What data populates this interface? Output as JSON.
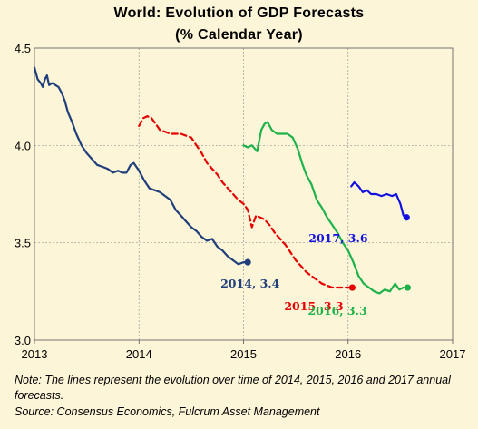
{
  "chart_data": {
    "type": "line",
    "title": "World: Evolution of GDP Forecasts",
    "subtitle": "(% Calendar Year)",
    "xlim": [
      2013,
      2017
    ],
    "ylim": [
      3.0,
      4.5
    ],
    "x_ticks": [
      "2013",
      "2014",
      "2015",
      "2016",
      "2017"
    ],
    "y_ticks": [
      "3.0",
      "3.5",
      "4.0",
      "4.5"
    ],
    "grid": true,
    "series": [
      {
        "name": "2014",
        "label": "2014, 3.4",
        "color": "#1f3f7a",
        "style": "solid",
        "points": [
          [
            2013.0,
            4.4
          ],
          [
            2013.03,
            4.34
          ],
          [
            2013.06,
            4.32
          ],
          [
            2013.08,
            4.3
          ],
          [
            2013.1,
            4.34
          ],
          [
            2013.12,
            4.36
          ],
          [
            2013.14,
            4.31
          ],
          [
            2013.17,
            4.32
          ],
          [
            2013.2,
            4.31
          ],
          [
            2013.23,
            4.3
          ],
          [
            2013.26,
            4.27
          ],
          [
            2013.29,
            4.23
          ],
          [
            2013.32,
            4.17
          ],
          [
            2013.36,
            4.12
          ],
          [
            2013.4,
            4.06
          ],
          [
            2013.45,
            4.0
          ],
          [
            2013.5,
            3.96
          ],
          [
            2013.55,
            3.93
          ],
          [
            2013.6,
            3.9
          ],
          [
            2013.65,
            3.89
          ],
          [
            2013.7,
            3.88
          ],
          [
            2013.75,
            3.86
          ],
          [
            2013.8,
            3.87
          ],
          [
            2013.84,
            3.86
          ],
          [
            2013.88,
            3.86
          ],
          [
            2013.92,
            3.9
          ],
          [
            2013.95,
            3.91
          ],
          [
            2014.0,
            3.87
          ],
          [
            2014.05,
            3.82
          ],
          [
            2014.1,
            3.78
          ],
          [
            2014.15,
            3.77
          ],
          [
            2014.2,
            3.76
          ],
          [
            2014.25,
            3.74
          ],
          [
            2014.3,
            3.72
          ],
          [
            2014.35,
            3.67
          ],
          [
            2014.4,
            3.64
          ],
          [
            2014.45,
            3.61
          ],
          [
            2014.5,
            3.58
          ],
          [
            2014.55,
            3.56
          ],
          [
            2014.6,
            3.53
          ],
          [
            2014.65,
            3.51
          ],
          [
            2014.7,
            3.52
          ],
          [
            2014.75,
            3.48
          ],
          [
            2014.8,
            3.46
          ],
          [
            2014.85,
            3.43
          ],
          [
            2014.9,
            3.41
          ],
          [
            2014.95,
            3.39
          ],
          [
            2015.0,
            3.4
          ],
          [
            2015.04,
            3.4
          ]
        ],
        "end_value": 3.4
      },
      {
        "name": "2015",
        "label": "2015, 3.3",
        "color": "#e60000",
        "style": "dashed",
        "points": [
          [
            2014.0,
            4.1
          ],
          [
            2014.04,
            4.14
          ],
          [
            2014.08,
            4.15
          ],
          [
            2014.12,
            4.14
          ],
          [
            2014.16,
            4.11
          ],
          [
            2014.2,
            4.08
          ],
          [
            2014.25,
            4.07
          ],
          [
            2014.3,
            4.06
          ],
          [
            2014.35,
            4.06
          ],
          [
            2014.4,
            4.06
          ],
          [
            2014.45,
            4.05
          ],
          [
            2014.5,
            4.04
          ],
          [
            2014.55,
            4.0
          ],
          [
            2014.6,
            3.96
          ],
          [
            2014.65,
            3.91
          ],
          [
            2014.7,
            3.88
          ],
          [
            2014.75,
            3.85
          ],
          [
            2014.8,
            3.81
          ],
          [
            2014.85,
            3.78
          ],
          [
            2014.9,
            3.75
          ],
          [
            2014.95,
            3.72
          ],
          [
            2015.0,
            3.7
          ],
          [
            2015.04,
            3.67
          ],
          [
            2015.08,
            3.58
          ],
          [
            2015.12,
            3.64
          ],
          [
            2015.16,
            3.63
          ],
          [
            2015.2,
            3.62
          ],
          [
            2015.25,
            3.59
          ],
          [
            2015.3,
            3.55
          ],
          [
            2015.35,
            3.52
          ],
          [
            2015.4,
            3.49
          ],
          [
            2015.45,
            3.45
          ],
          [
            2015.5,
            3.41
          ],
          [
            2015.55,
            3.38
          ],
          [
            2015.6,
            3.35
          ],
          [
            2015.65,
            3.33
          ],
          [
            2015.7,
            3.31
          ],
          [
            2015.75,
            3.29
          ],
          [
            2015.8,
            3.28
          ],
          [
            2015.85,
            3.27
          ],
          [
            2015.9,
            3.27
          ],
          [
            2015.95,
            3.27
          ],
          [
            2016.0,
            3.27
          ],
          [
            2016.04,
            3.27
          ]
        ],
        "end_value": 3.3
      },
      {
        "name": "2016",
        "label": "2016, 3.3",
        "color": "#1db34a",
        "style": "solid",
        "points": [
          [
            2015.0,
            4.0
          ],
          [
            2015.04,
            3.99
          ],
          [
            2015.08,
            4.0
          ],
          [
            2015.13,
            3.97
          ],
          [
            2015.17,
            4.08
          ],
          [
            2015.2,
            4.11
          ],
          [
            2015.23,
            4.12
          ],
          [
            2015.27,
            4.08
          ],
          [
            2015.32,
            4.06
          ],
          [
            2015.37,
            4.06
          ],
          [
            2015.42,
            4.06
          ],
          [
            2015.47,
            4.04
          ],
          [
            2015.52,
            3.98
          ],
          [
            2015.56,
            3.91
          ],
          [
            2015.6,
            3.85
          ],
          [
            2015.65,
            3.8
          ],
          [
            2015.7,
            3.72
          ],
          [
            2015.75,
            3.68
          ],
          [
            2015.8,
            3.63
          ],
          [
            2015.85,
            3.59
          ],
          [
            2015.9,
            3.55
          ],
          [
            2015.95,
            3.5
          ],
          [
            2016.0,
            3.46
          ],
          [
            2016.05,
            3.4
          ],
          [
            2016.1,
            3.33
          ],
          [
            2016.15,
            3.29
          ],
          [
            2016.2,
            3.27
          ],
          [
            2016.25,
            3.25
          ],
          [
            2016.3,
            3.24
          ],
          [
            2016.35,
            3.26
          ],
          [
            2016.4,
            3.25
          ],
          [
            2016.45,
            3.29
          ],
          [
            2016.49,
            3.26
          ],
          [
            2016.53,
            3.27
          ],
          [
            2016.57,
            3.27
          ]
        ],
        "end_value": 3.3
      },
      {
        "name": "2017",
        "label": "2017, 3.6",
        "color": "#1111e0",
        "style": "solid",
        "points": [
          [
            2016.03,
            3.79
          ],
          [
            2016.06,
            3.81
          ],
          [
            2016.1,
            3.79
          ],
          [
            2016.14,
            3.76
          ],
          [
            2016.18,
            3.77
          ],
          [
            2016.22,
            3.75
          ],
          [
            2016.27,
            3.75
          ],
          [
            2016.32,
            3.74
          ],
          [
            2016.37,
            3.75
          ],
          [
            2016.42,
            3.74
          ],
          [
            2016.46,
            3.75
          ],
          [
            2016.5,
            3.7
          ],
          [
            2016.53,
            3.64
          ],
          [
            2016.56,
            3.63
          ]
        ],
        "end_value": 3.6
      }
    ]
  },
  "note": "Note: The lines represent the evolution over time of 2014, 2015, 2016 and 2017 annual forecasts.",
  "source": "Source: Consensus Economics, Fulcrum Asset Management"
}
